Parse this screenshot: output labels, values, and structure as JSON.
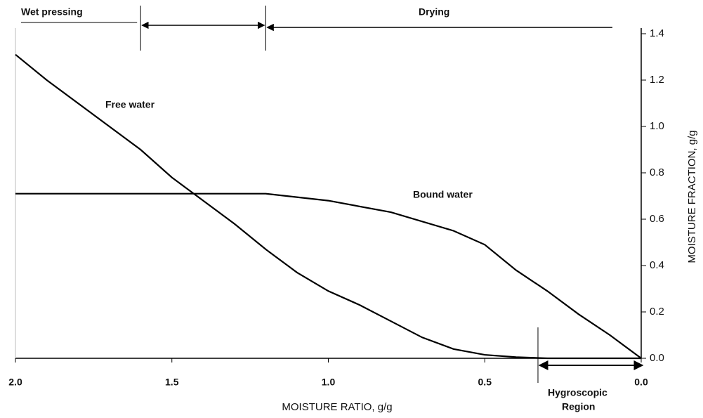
{
  "chart_data": {
    "type": "line",
    "x_label": "MOISTURE RATIO, g/g",
    "y_label": "MOISTURE FRACTION, g/g",
    "xlim": [
      2.0,
      0.0
    ],
    "xticks": [
      {
        "value": 2.0,
        "label": "2.0"
      },
      1.5,
      {
        "value": 1.0,
        "label": "1.0"
      },
      0.5,
      {
        "value": 0.0,
        "label": "0.0"
      }
    ],
    "ylim": [
      0.0,
      1.4
    ],
    "yticks": [
      {
        "value": 0.0,
        "label": "0.0"
      },
      0.2,
      0.4,
      0.6,
      0.8,
      {
        "value": 1.0,
        "label": "1.0"
      },
      1.2,
      1.4
    ],
    "series": [
      {
        "name": "Free water",
        "color": "#000000",
        "x": [
          2.0,
          1.9,
          1.75,
          1.6,
          1.5,
          1.42,
          1.3,
          1.2,
          1.1,
          1.0,
          0.9,
          0.8,
          0.7,
          0.6,
          0.5,
          0.4,
          0.3,
          0.0
        ],
        "values": [
          1.31,
          1.2,
          1.05,
          0.9,
          0.78,
          0.7,
          0.58,
          0.47,
          0.37,
          0.29,
          0.23,
          0.16,
          0.09,
          0.04,
          0.015,
          0.005,
          0.0,
          0.0
        ]
      },
      {
        "name": "Bound water",
        "color": "#000000",
        "x": [
          2.0,
          1.5,
          1.2,
          1.0,
          0.8,
          0.6,
          0.5,
          0.4,
          0.3,
          0.2,
          0.1,
          0.0
        ],
        "values": [
          0.71,
          0.71,
          0.71,
          0.68,
          0.63,
          0.55,
          0.49,
          0.38,
          0.29,
          0.19,
          0.1,
          0.0
        ]
      }
    ],
    "regions": {
      "wet_pressing": "Wet pressing",
      "drying": "Drying",
      "hygroscopic": [
        "Hygroscopic",
        "Region"
      ]
    },
    "boundaries": [
      1.6,
      1.2,
      0.33
    ]
  }
}
